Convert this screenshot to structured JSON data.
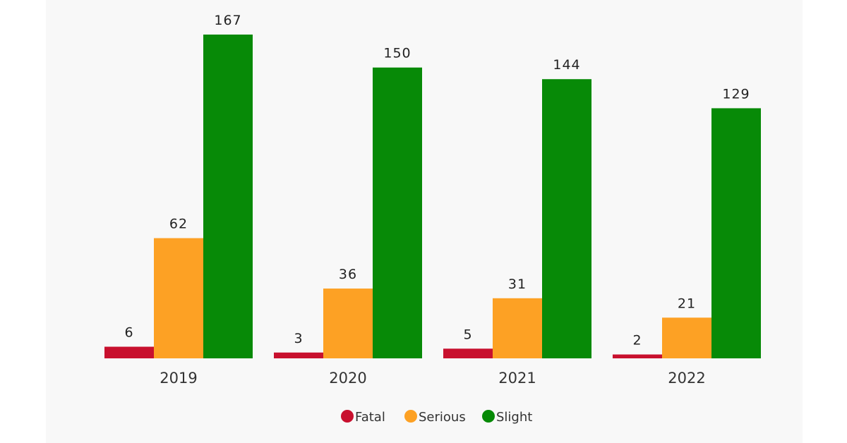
{
  "chart_data": {
    "type": "bar",
    "title": "",
    "xlabel": "",
    "ylabel": "",
    "categories": [
      "2019",
      "2020",
      "2021",
      "2022"
    ],
    "series": [
      {
        "name": "Fatal",
        "color": "#c8102e",
        "values": [
          6,
          3,
          5,
          2
        ]
      },
      {
        "name": "Serious",
        "color": "#fda124",
        "values": [
          62,
          36,
          31,
          21
        ]
      },
      {
        "name": "Slight",
        "color": "#078a07",
        "values": [
          167,
          150,
          144,
          129
        ]
      }
    ],
    "ylim": [
      0,
      167
    ],
    "grid": false,
    "legend_position": "bottom-center"
  }
}
